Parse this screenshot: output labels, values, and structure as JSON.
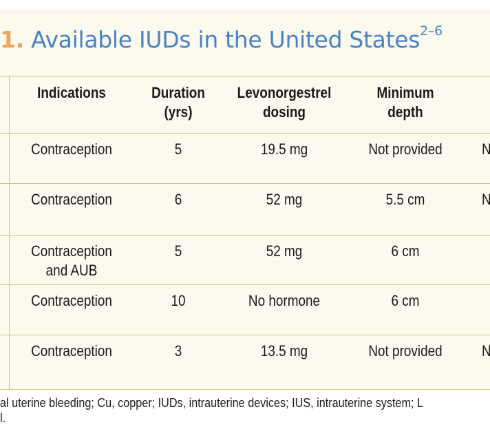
{
  "title": {
    "number_fragment": "1",
    "separator": ".",
    "text": "Available IUDs in the United States",
    "superscript": "2–6"
  },
  "headers": {
    "indications": "Indications",
    "duration_line1": "Duration",
    "duration_line2": "(yrs)",
    "lng_line1": "Levonorgestrel",
    "lng_line2": "dosing",
    "depth_line1": "Minimum",
    "depth_line2": "depth"
  },
  "rows": [
    {
      "indication": "Contraception",
      "indication_line2": "",
      "duration": "5",
      "dosing": "19.5 mg",
      "depth": "Not provided",
      "clipped": "N"
    },
    {
      "indication": "Contraception",
      "indication_line2": "",
      "duration": "6",
      "dosing": "52 mg",
      "depth": "5.5 cm",
      "clipped": "N"
    },
    {
      "indication": "Contraception",
      "indication_line2": "and AUB",
      "duration": "5",
      "dosing": "52 mg",
      "depth": "6 cm",
      "clipped": ""
    },
    {
      "indication": "Contraception",
      "indication_line2": "",
      "duration": "10",
      "dosing": "No hormone",
      "depth": "6 cm",
      "clipped": ""
    },
    {
      "indication": "Contraception",
      "indication_line2": "",
      "duration": "3",
      "dosing": "13.5 mg",
      "depth": "Not provided",
      "clipped": "N"
    }
  ],
  "footer": {
    "line1": "al uterine bleeding; Cu, copper; IUDs, intrauterine devices; IUS, intrauterine system; L",
    "line2": "l."
  },
  "colors": {
    "title": "#4a83c2",
    "accent": "#f0a35c",
    "panel": "#fcf9ee",
    "rule": "#cfc777"
  }
}
